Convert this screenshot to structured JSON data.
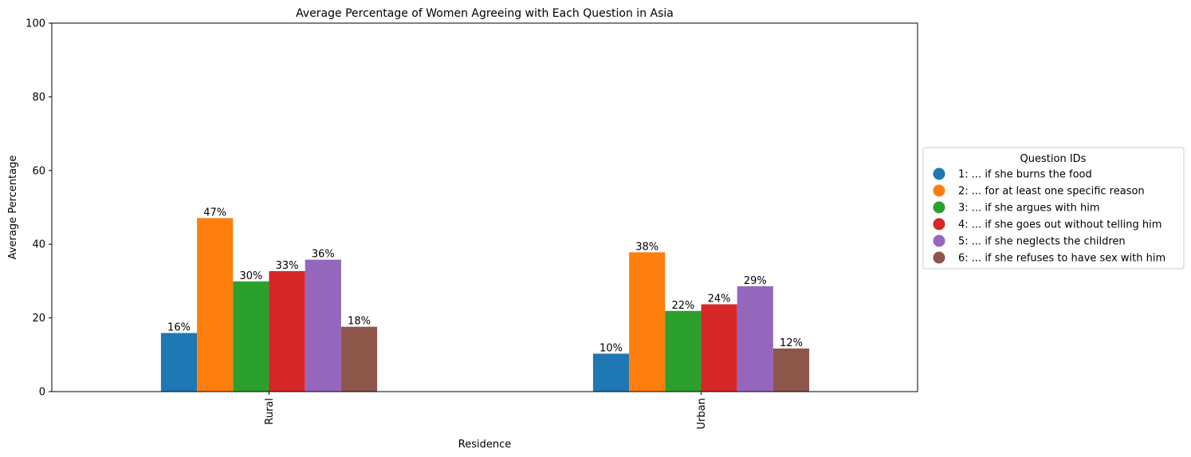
{
  "chart_data": {
    "type": "bar",
    "title": "Average Percentage of Women Agreeing with Each Question in Asia",
    "xlabel": "Residence",
    "ylabel": "Average Percentage",
    "ylim": [
      0,
      100
    ],
    "yticks": [
      0,
      20,
      40,
      60,
      80,
      100
    ],
    "categories": [
      "Rural",
      "Urban"
    ],
    "series": [
      {
        "name": "1: ... if she burns the food",
        "color": "#1f77b4",
        "values": [
          15.9,
          10.3
        ],
        "labels": [
          "16%",
          "10%"
        ]
      },
      {
        "name": "2: ... for at least one specific reason",
        "color": "#ff7f0e",
        "values": [
          47.1,
          37.8
        ],
        "labels": [
          "47%",
          "38%"
        ]
      },
      {
        "name": "3: ... if she argues with him",
        "color": "#2ca02c",
        "values": [
          29.9,
          21.9
        ],
        "labels": [
          "30%",
          "22%"
        ]
      },
      {
        "name": "4: ... if she goes out without telling him",
        "color": "#d62728",
        "values": [
          32.7,
          23.7
        ],
        "labels": [
          "33%",
          "24%"
        ]
      },
      {
        "name": "5: ... if she neglects the children",
        "color": "#9467bd",
        "values": [
          35.8,
          28.6
        ],
        "labels": [
          "36%",
          "29%"
        ]
      },
      {
        "name": "6: ... if she refuses to have sex with him",
        "color": "#8c564b",
        "values": [
          17.6,
          11.7
        ],
        "labels": [
          "18%",
          "12%"
        ]
      }
    ],
    "legend": {
      "title": "Question IDs",
      "position": "center-right outside"
    },
    "grid": false
  }
}
